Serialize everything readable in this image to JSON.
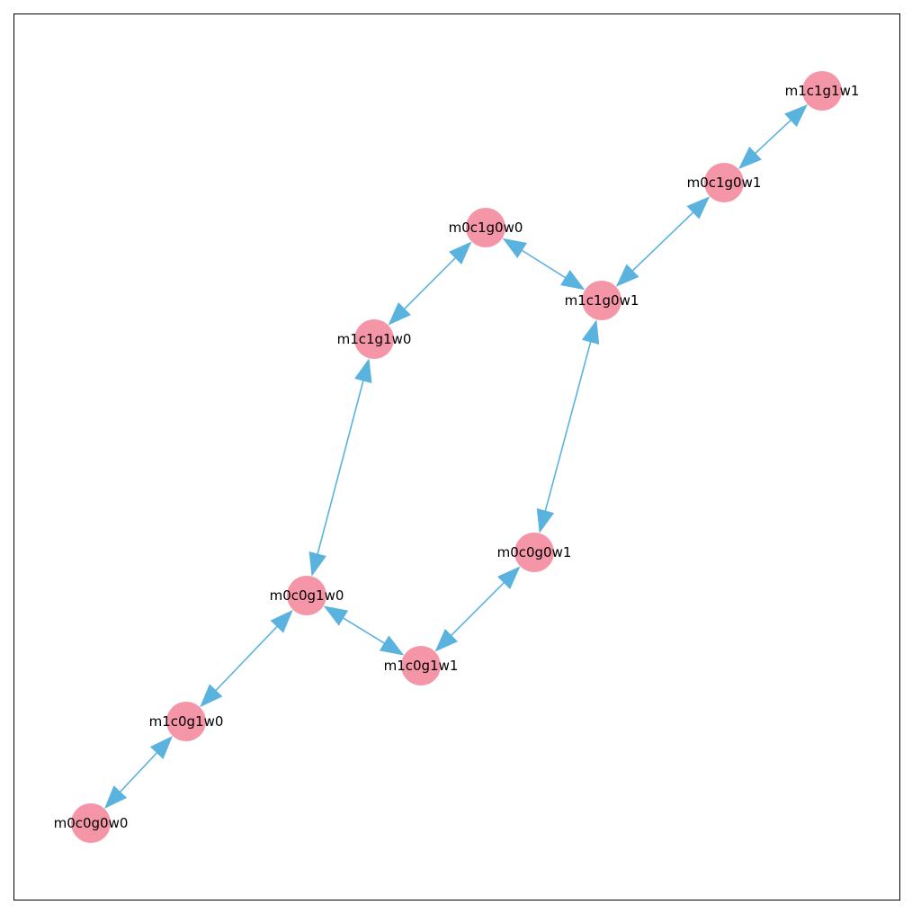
{
  "graph": {
    "nodes": [
      {
        "id": "m1c1g1w1",
        "label": "m1c1g1w1"
      },
      {
        "id": "m0c1g0w1",
        "label": "m0c1g0w1"
      },
      {
        "id": "m0c1g0w0",
        "label": "m0c1g0w0"
      },
      {
        "id": "m1c1g0w1",
        "label": "m1c1g0w1"
      },
      {
        "id": "m1c1g1w0",
        "label": "m1c1g1w0"
      },
      {
        "id": "m0c0g0w1",
        "label": "m0c0g0w1"
      },
      {
        "id": "m0c0g1w0",
        "label": "m0c0g1w0"
      },
      {
        "id": "m1c0g1w1",
        "label": "m1c0g1w1"
      },
      {
        "id": "m1c0g1w0",
        "label": "m1c0g1w0"
      },
      {
        "id": "m0c0g0w0",
        "label": "m0c0g0w0"
      }
    ],
    "edges": [
      {
        "source": "m1c1g1w1",
        "target": "m0c1g0w1",
        "directed": "both"
      },
      {
        "source": "m0c1g0w1",
        "target": "m1c1g0w1",
        "directed": "both"
      },
      {
        "source": "m0c1g0w0",
        "target": "m1c1g0w1",
        "directed": "both"
      },
      {
        "source": "m0c1g0w0",
        "target": "m1c1g1w0",
        "directed": "both"
      },
      {
        "source": "m1c1g1w0",
        "target": "m0c0g1w0",
        "directed": "both"
      },
      {
        "source": "m1c1g0w1",
        "target": "m0c0g0w1",
        "directed": "both"
      },
      {
        "source": "m0c0g0w1",
        "target": "m1c0g1w1",
        "directed": "both"
      },
      {
        "source": "m0c0g1w0",
        "target": "m1c0g1w1",
        "directed": "both"
      },
      {
        "source": "m0c0g1w0",
        "target": "m1c0g1w0",
        "directed": "both"
      },
      {
        "source": "m1c0g1w0",
        "target": "m0c0g0w0",
        "directed": "both"
      }
    ],
    "colors": {
      "node_fill": "#f596a8",
      "edge_stroke": "#5ab2de",
      "arrow_fill": "#5ab2de",
      "frame": "#000000",
      "label": "#000000"
    }
  }
}
